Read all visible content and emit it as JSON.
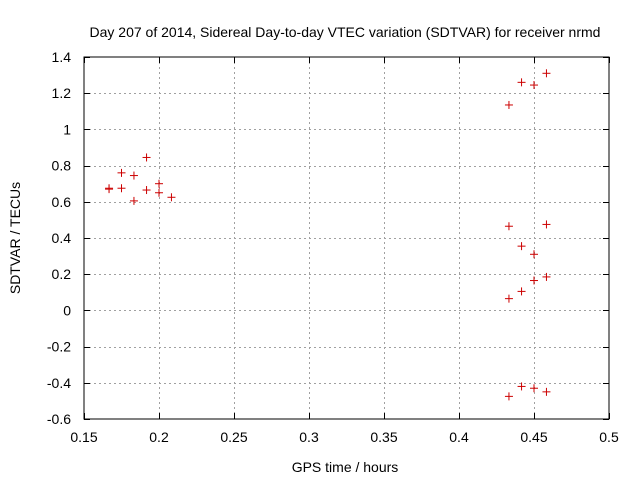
{
  "chart_data": {
    "type": "scatter",
    "title": "Day 207 of 2014, Sidereal Day-to-day VTEC variation (SDTVAR) for receiver nrmd",
    "xlabel": "GPS time / hours",
    "ylabel": "SDTVAR / TECUs",
    "xlim": [
      0.15,
      0.5
    ],
    "ylim": [
      -0.6,
      1.4
    ],
    "xticks": [
      "0.15",
      "0.2",
      "0.25",
      "0.3",
      "0.35",
      "0.4",
      "0.45",
      "0.5"
    ],
    "yticks": [
      "-0.6",
      "-0.4",
      "-0.2",
      "0",
      "0.2",
      "0.4",
      "0.6",
      "0.8",
      "1",
      "1.2",
      "1.4"
    ],
    "grid": true,
    "marker": "plus",
    "color": "#cc0000",
    "points": [
      {
        "x": 0.1667,
        "y": 0.67
      },
      {
        "x": 0.1667,
        "y": 0.675
      },
      {
        "x": 0.175,
        "y": 0.76
      },
      {
        "x": 0.175,
        "y": 0.675
      },
      {
        "x": 0.1833,
        "y": 0.745
      },
      {
        "x": 0.1833,
        "y": 0.605
      },
      {
        "x": 0.1917,
        "y": 0.845
      },
      {
        "x": 0.1917,
        "y": 0.665
      },
      {
        "x": 0.2,
        "y": 0.7
      },
      {
        "x": 0.2,
        "y": 0.65
      },
      {
        "x": 0.2083,
        "y": 0.625
      },
      {
        "x": 0.4333,
        "y": 1.135
      },
      {
        "x": 0.4417,
        "y": 1.26
      },
      {
        "x": 0.45,
        "y": 1.245
      },
      {
        "x": 0.4583,
        "y": 1.31
      },
      {
        "x": 0.4333,
        "y": 0.465
      },
      {
        "x": 0.4417,
        "y": 0.355
      },
      {
        "x": 0.45,
        "y": 0.31
      },
      {
        "x": 0.4583,
        "y": 0.475
      },
      {
        "x": 0.4333,
        "y": 0.065
      },
      {
        "x": 0.4417,
        "y": 0.105
      },
      {
        "x": 0.45,
        "y": 0.165
      },
      {
        "x": 0.4583,
        "y": 0.185
      },
      {
        "x": 0.4333,
        "y": -0.475
      },
      {
        "x": 0.4417,
        "y": -0.42
      },
      {
        "x": 0.45,
        "y": -0.43
      },
      {
        "x": 0.4583,
        "y": -0.45
      }
    ]
  }
}
